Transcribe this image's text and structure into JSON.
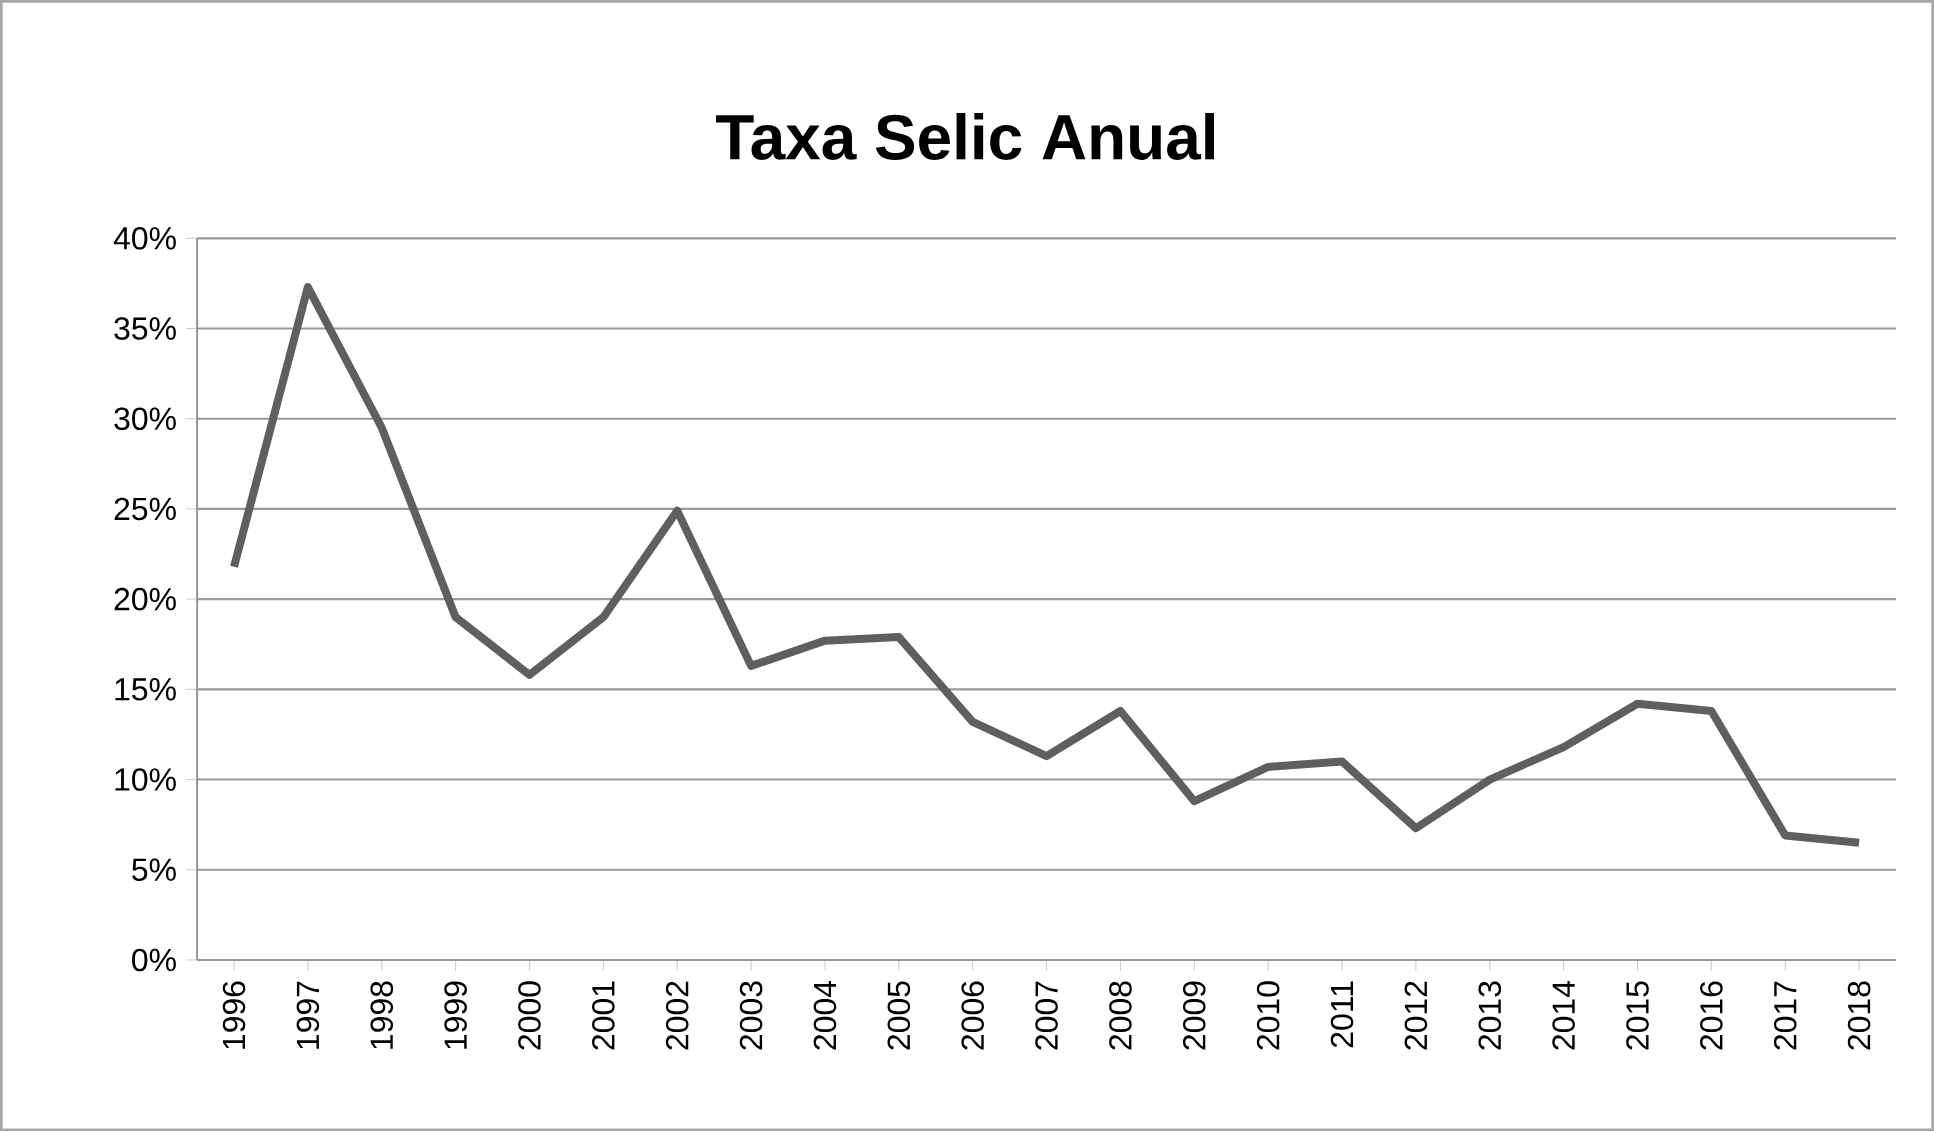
{
  "chart_data": {
    "type": "line",
    "title": "Taxa Selic Anual",
    "categories": [
      "1996",
      "1997",
      "1998",
      "1999",
      "2000",
      "2001",
      "2002",
      "2003",
      "2004",
      "2005",
      "2006",
      "2007",
      "2008",
      "2009",
      "2010",
      "2011",
      "2012",
      "2013",
      "2014",
      "2015",
      "2016",
      "2017",
      "2018"
    ],
    "series": [
      {
        "color": "#5f5f5f",
        "values": [
          21.8,
          37.3,
          29.5,
          19.0,
          15.8,
          19.0,
          24.9,
          16.3,
          17.7,
          17.9,
          13.2,
          11.3,
          13.8,
          8.8,
          10.7,
          11.0,
          7.3,
          10.0,
          11.8,
          14.2,
          13.8,
          6.9,
          6.5
        ]
      }
    ],
    "ylim": [
      0,
      40
    ],
    "yticks": [
      {
        "value": 0,
        "label": "0%"
      },
      {
        "value": 5,
        "label": "5%"
      },
      {
        "value": 10,
        "label": "10%"
      },
      {
        "value": 15,
        "label": "15%"
      },
      {
        "value": 20,
        "label": "20%"
      },
      {
        "value": 25,
        "label": "25%"
      },
      {
        "value": 30,
        "label": "30%"
      },
      {
        "value": 35,
        "label": "35%"
      },
      {
        "value": 40,
        "label": "40%"
      }
    ],
    "grid": "y",
    "marker": "none",
    "line_style": "solid"
  }
}
